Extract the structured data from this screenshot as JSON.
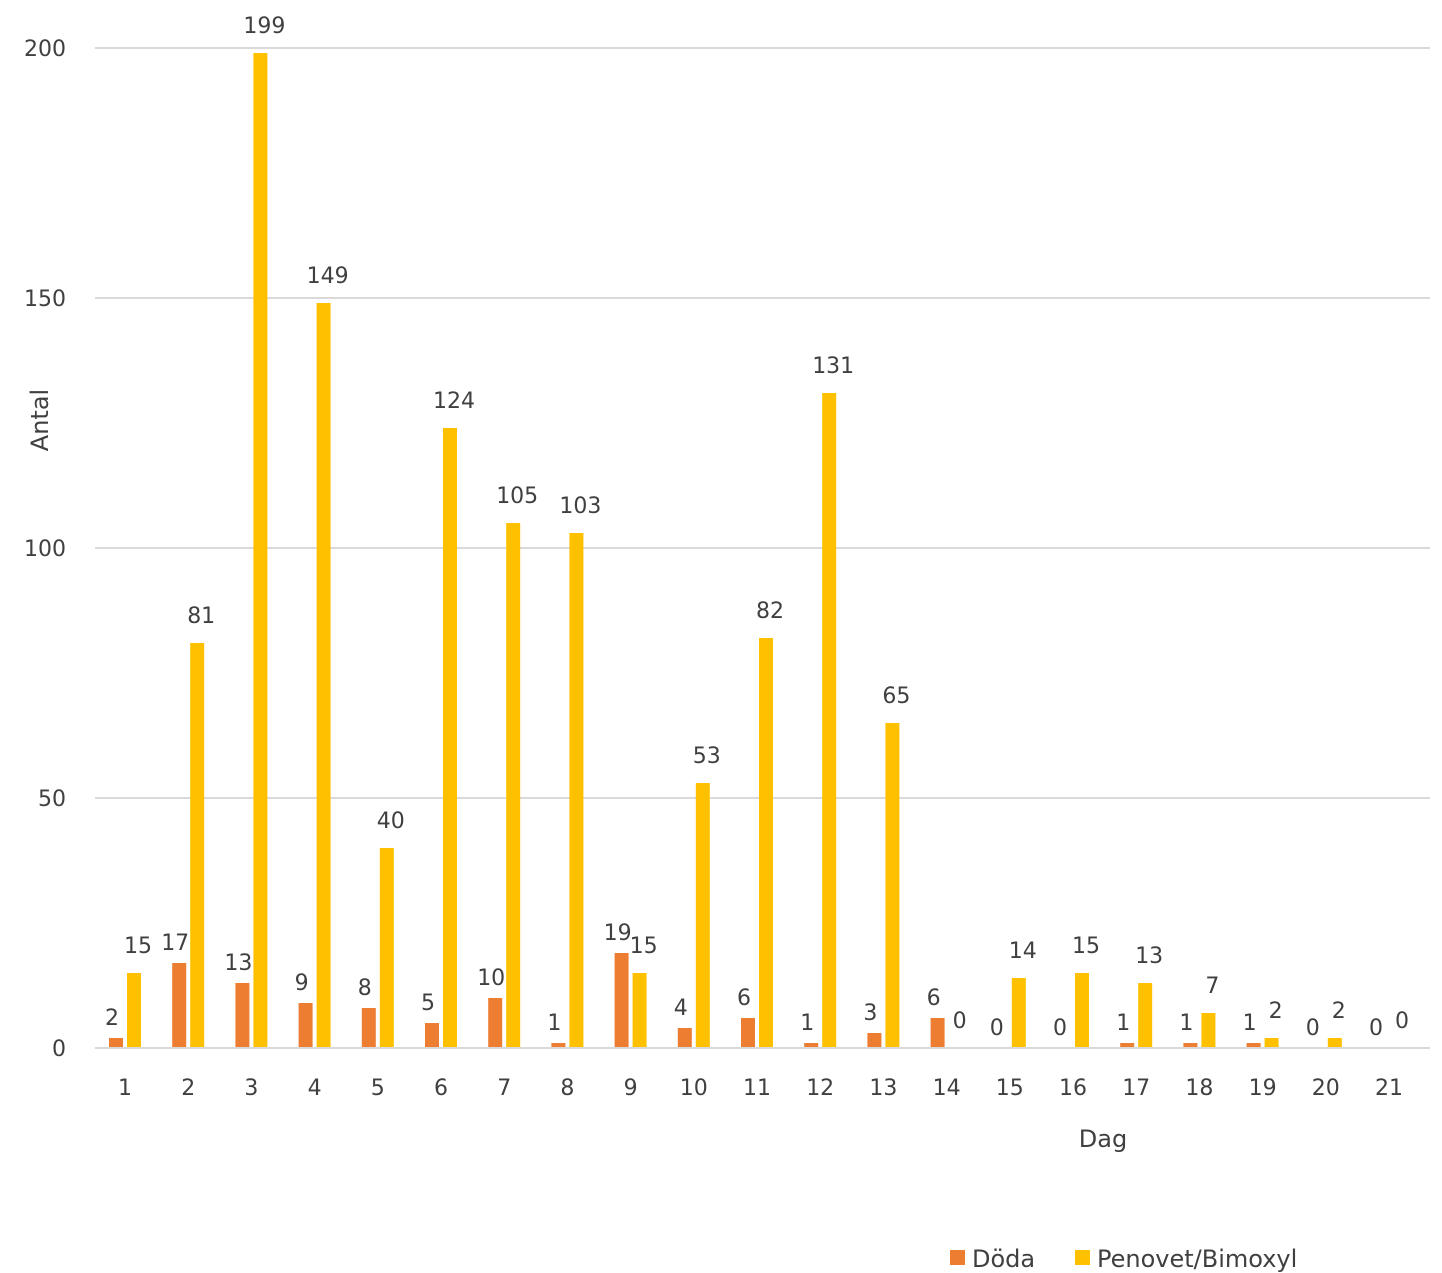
{
  "chart_data": {
    "type": "bar",
    "xlabel": "Dag",
    "ylabel": "Antal",
    "ylim": [
      0,
      200
    ],
    "ytick_step": 50,
    "grid": true,
    "legend_position": "bottom-right",
    "categories": [
      "1",
      "2",
      "3",
      "4",
      "5",
      "6",
      "7",
      "8",
      "9",
      "10",
      "11",
      "12",
      "13",
      "14",
      "15",
      "16",
      "17",
      "18",
      "19",
      "20",
      "21"
    ],
    "series": [
      {
        "name": "Döda",
        "color": "#ED7D31",
        "values": [
          2,
          17,
          13,
          9,
          8,
          5,
          10,
          1,
          19,
          4,
          6,
          1,
          3,
          6,
          0,
          0,
          1,
          1,
          1,
          0,
          0
        ]
      },
      {
        "name": "Penovet/Bimoxyl",
        "color": "#FFC000",
        "values": [
          15,
          81,
          199,
          149,
          40,
          124,
          105,
          103,
          15,
          53,
          82,
          131,
          65,
          0,
          14,
          15,
          13,
          7,
          2,
          2,
          0
        ]
      }
    ]
  }
}
